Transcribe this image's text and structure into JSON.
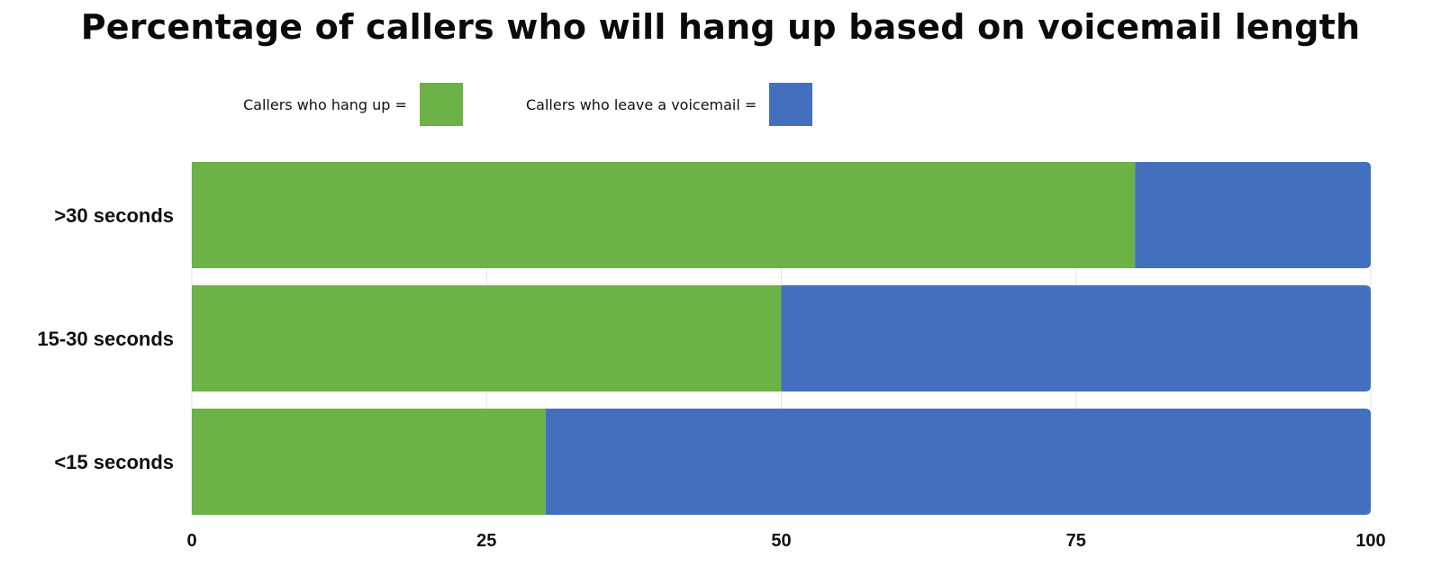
{
  "chart_data": {
    "type": "bar",
    "orientation": "horizontal",
    "stacked": true,
    "title": "Percentage of callers who will hang up based on voicemail length",
    "categories": [
      ">30 seconds",
      "15-30 seconds",
      "<15 seconds"
    ],
    "series": [
      {
        "name": "Callers who hang up =",
        "color": "#6db247",
        "values": [
          80,
          50,
          30
        ]
      },
      {
        "name": "Callers who leave a voicemail =",
        "color": "#436fbf",
        "values": [
          20,
          50,
          70
        ]
      }
    ],
    "xlim": [
      0,
      100
    ],
    "xticks": [
      0,
      25,
      50,
      75,
      100
    ],
    "grid": true,
    "legend_position": "top"
  }
}
